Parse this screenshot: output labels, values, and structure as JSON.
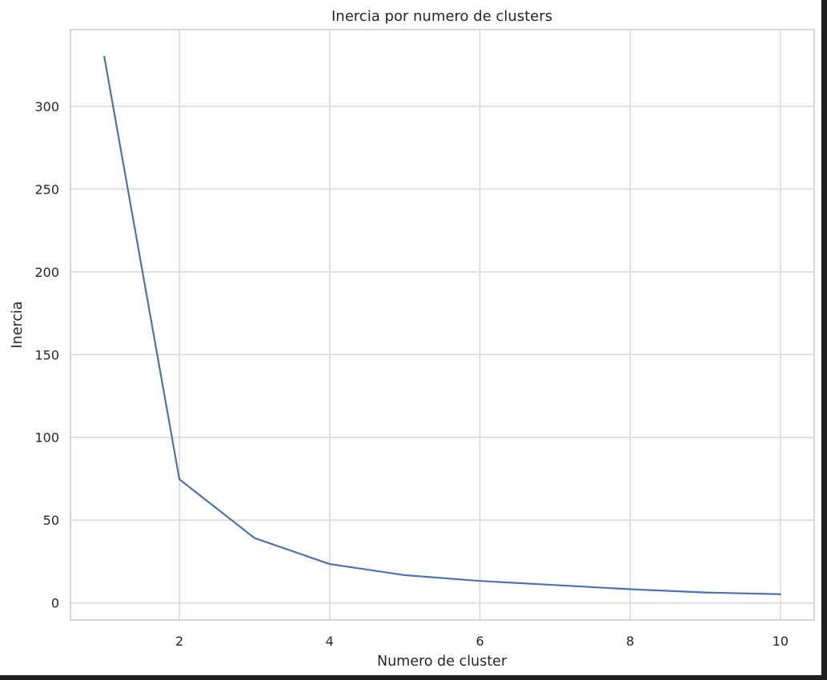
{
  "chart_data": {
    "type": "line",
    "title": "Inercia por numero de clusters",
    "xlabel": "Numero de cluster",
    "ylabel": "Inercia",
    "x": [
      1,
      2,
      3,
      4,
      5,
      6,
      7,
      8,
      9,
      10
    ],
    "series": [
      {
        "values": [
          330,
          74.7,
          39.2,
          23.5,
          16.8,
          13.3,
          10.8,
          8.3,
          6.3,
          5.3
        ],
        "color": "#4c72b0"
      }
    ],
    "xlim": [
      0.55,
      10.45
    ],
    "ylim": [
      -10.3,
      346.3
    ],
    "xticks": [
      2,
      4,
      6,
      8,
      10
    ],
    "yticks": [
      0,
      50,
      100,
      150,
      200,
      250,
      300
    ],
    "xtick_labels": [
      "2",
      "4",
      "6",
      "8",
      "10"
    ],
    "ytick_labels": [
      "0",
      "50",
      "100",
      "150",
      "200",
      "250",
      "300"
    ],
    "grid": true,
    "colors": {
      "grid": "#d9d9d9",
      "spine": "#cccccc",
      "text": "#262626",
      "background": "#ffffff",
      "outer_background": "#1f1f1f"
    }
  }
}
